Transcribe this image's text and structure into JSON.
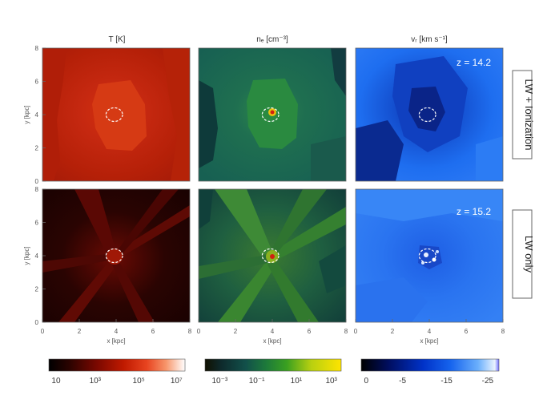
{
  "chart_data": {
    "type": "heatmap",
    "columns": [
      {
        "id": "temperature",
        "title": "T [K]",
        "colormap": "temperature",
        "scale": "log",
        "colorbar_ticks": [
          "10",
          "10³",
          "10⁵",
          "10⁷"
        ]
      },
      {
        "id": "density",
        "title": "nₑ [cm⁻³]",
        "colormap": "density",
        "scale": "log",
        "colorbar_ticks": [
          "10⁻³",
          "10⁻¹",
          "10¹",
          "10³"
        ]
      },
      {
        "id": "velocity",
        "title": "vᵣ [km s⁻¹]",
        "colormap": "velocity",
        "scale": "linear",
        "colorbar_ticks": [
          "0",
          "-5",
          "-15",
          "-25"
        ]
      }
    ],
    "rows": [
      {
        "id": "lw-ionization",
        "label": "LW + Ionization",
        "redshift": "z = 14.2"
      },
      {
        "id": "lw-only",
        "label": "LW only",
        "redshift": "z = 15.2"
      }
    ],
    "x_axis": {
      "label": "x [kpc]",
      "ticks": [
        "0",
        "2",
        "4",
        "6",
        "8"
      ],
      "range": [
        0,
        8
      ]
    },
    "y_axis": {
      "label": "y [kpc]",
      "ticks": [
        "0",
        "2",
        "4",
        "6",
        "8"
      ],
      "range": [
        0,
        8
      ]
    },
    "halo_marker": {
      "x": 3.9,
      "y": 4.0,
      "radius": 0.45,
      "style": "dashed white circle"
    },
    "colors": {
      "temperature_map": [
        "#0a0000",
        "#3a0500",
        "#7a0a00",
        "#b81a00",
        "#e03c10",
        "#f47a4a",
        "#fcc7a8",
        "#ffffff"
      ],
      "density_map": [
        "#0a0a00",
        "#103a3a",
        "#1a5a50",
        "#2a8a3a",
        "#7ac020",
        "#f0e010",
        "#ffe600"
      ],
      "velocity_map": [
        "#000000",
        "#001a80",
        "#0040e0",
        "#1e6ef0",
        "#60a0f8",
        "#c8e0ff",
        "#ffffff"
      ]
    }
  }
}
